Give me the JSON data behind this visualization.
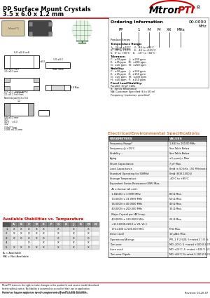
{
  "title_line1": "PP Surface Mount Crystals",
  "title_line2": "3.5 x 6.0 x 1.2 mm",
  "bg_color": "#ffffff",
  "red_color": "#CC0000",
  "orange_color": "#D4824A",
  "green_color": "#3A6B3A",
  "dark_green": "#2A5A2A",
  "ordering_title": "Ordering Information",
  "ordering_freq": "00.0000\nMHz",
  "footer_note1": "MtronPTI reserves the right to make changes to the product(s) and service model described",
  "footer_note2": "herein without notice. No liability is assumed as a result of their use or application.",
  "footer_contact": "Contact us for your application specific requirements: MtronPTI 1-888-763-6866.",
  "footer_website": "www.mtronpti.com",
  "footer_revision": "Revision: 02-26-07",
  "elec_title": "Electrical/Environmental Specifications",
  "stab_table_title": "Available Stabilities vs. Temperature",
  "avail_note": "A = Available",
  "na_note": "NA = Not Available"
}
